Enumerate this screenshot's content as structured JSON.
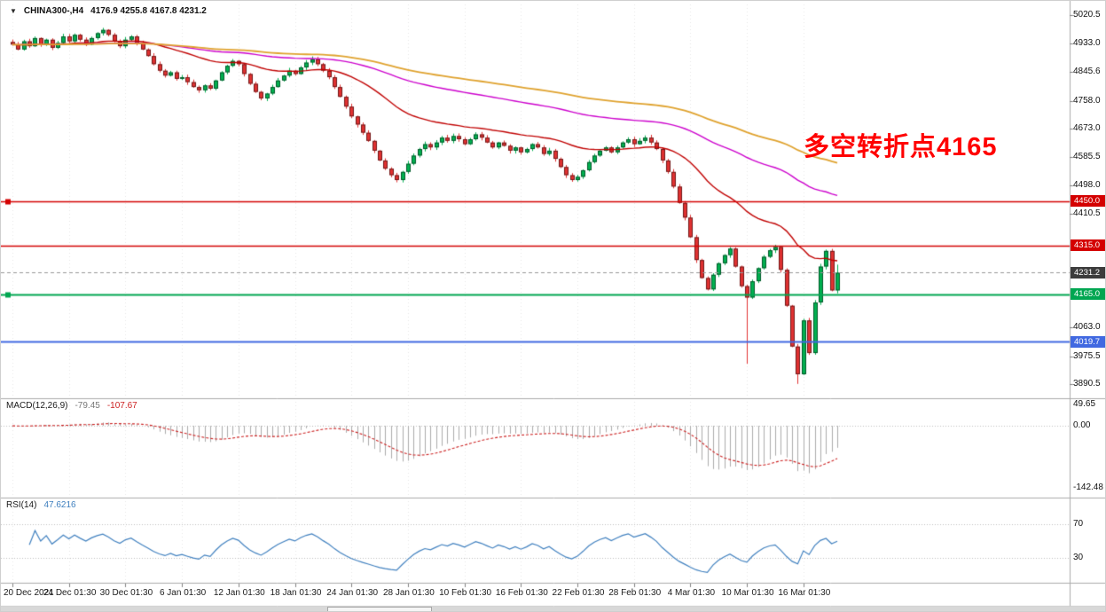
{
  "chart": {
    "dropdown_icon": "▼",
    "symbol": "CHINA300-,H4",
    "ohlc": "4176.9 4255.8 4167.8 4231.2",
    "annotation": "多空转折点4165"
  },
  "colors": {
    "up": "#00B050",
    "down": "#E03131",
    "candle_border": "rgba(0,0,0,0.5)",
    "ma_fast": "#C00000",
    "ma_mid": "#CC00CC",
    "ma_slow": "#DFA22E",
    "line_red": "#D40000",
    "line_green": "#00A651",
    "line_blue": "#4169E1",
    "bid_line": "#999999",
    "bid_badge": "#3C3C3C",
    "macd_hist": "#ABABAB",
    "macd_signal": "#CC2222",
    "rsi_line": "#4080BF",
    "annotation": "#FF0000",
    "grid": "#E6E6E6",
    "separator": "#ABABAB",
    "axis_tick": "#808080"
  },
  "chart_data": {
    "type": "candlestick",
    "title": "CHINA300-,H4",
    "symbol": "CHINA300-",
    "timeframe": "H4",
    "x_labels": [
      "20 Dec 2021",
      "24 Dec 01:30",
      "30 Dec 01:30",
      "6 Jan 01:30",
      "12 Jan 01:30",
      "18 Jan 01:30",
      "24 Jan 01:30",
      "28 Jan 01:30",
      "10 Feb 01:30",
      "16 Feb 01:30",
      "22 Feb 01:30",
      "28 Feb 01:30",
      "4 Mar 01:30",
      "10 Mar 01:30",
      "16 Mar 01:30"
    ],
    "bars_per_label": 10,
    "price_range": [
      3852,
      5053
    ],
    "price_axis_ticks": [
      "5020.5",
      "4933.0",
      "4845.6",
      "4758.0",
      "4673.0",
      "4585.5",
      "4498.0",
      "4410.5",
      "4063.0",
      "3975.5",
      "3890.5"
    ],
    "closes": [
      4930,
      4915,
      4940,
      4925,
      4950,
      4930,
      4945,
      4920,
      4935,
      4955,
      4940,
      4960,
      4945,
      4930,
      4950,
      4965,
      4975,
      4960,
      4940,
      4925,
      4945,
      4955,
      4935,
      4915,
      4895,
      4870,
      4850,
      4835,
      4845,
      4825,
      4830,
      4815,
      4800,
      4790,
      4805,
      4795,
      4820,
      4845,
      4865,
      4880,
      4870,
      4840,
      4810,
      4785,
      4765,
      4780,
      4800,
      4820,
      4835,
      4850,
      4840,
      4860,
      4875,
      4885,
      4870,
      4850,
      4830,
      4800,
      4770,
      4740,
      4710,
      4685,
      4660,
      4635,
      4605,
      4575,
      4550,
      4530,
      4515,
      4540,
      4565,
      4590,
      4610,
      4625,
      4615,
      4630,
      4645,
      4635,
      4650,
      4640,
      4625,
      4640,
      4655,
      4645,
      4630,
      4615,
      4630,
      4620,
      4605,
      4615,
      4600,
      4610,
      4625,
      4615,
      4595,
      4605,
      4580,
      4555,
      4530,
      4515,
      4525,
      4545,
      4570,
      4590,
      4605,
      4615,
      4600,
      4615,
      4630,
      4640,
      4625,
      4635,
      4645,
      4630,
      4610,
      4575,
      4540,
      4495,
      4445,
      4400,
      4340,
      4270,
      4215,
      4180,
      4225,
      4260,
      4285,
      4305,
      4250,
      4190,
      4155,
      4205,
      4245,
      4280,
      4300,
      4310,
      4240,
      4130,
      4005,
      3920,
      4085,
      3985,
      4140,
      4250,
      4298,
      4176.9,
      4231.2
    ],
    "candle_overrides": {
      "spike_lows": {
        "130": 3952.0,
        "139": 3890.5
      },
      "last": {
        "open": 4176.9,
        "high": 4255.8,
        "low": 4167.8,
        "close": 4231.2
      }
    },
    "moving_averages": [
      {
        "name": "ma-fast",
        "period": 34,
        "color_key": "ma_fast",
        "width": 1.4
      },
      {
        "name": "ma-mid",
        "period": 96,
        "color_key": "ma_mid",
        "width": 1.4
      },
      {
        "name": "ma-slow",
        "period": 150,
        "color_key": "ma_slow",
        "width": 1.8
      }
    ],
    "hlines": [
      {
        "price": 4450.0,
        "label": "4450.0",
        "color_key": "line_red",
        "width": 1.6,
        "handle": true
      },
      {
        "price": 4315.0,
        "label": "4315.0",
        "color_key": "line_red",
        "width": 1.6,
        "handle": false
      },
      {
        "price": 4165.0,
        "label": "4165.0",
        "color_key": "line_green",
        "width": 1.8,
        "handle": true
      },
      {
        "price": 4019.7,
        "label": "4019.7",
        "color_key": "line_blue",
        "width": 1.8,
        "handle": false
      }
    ],
    "current_price": {
      "value": 4231.2,
      "label": "4231.2"
    },
    "indicators": {
      "macd": {
        "label": "MACD(12,26,9)",
        "value_main": "-79.45",
        "value_signal": "-107.67",
        "fast": 12,
        "slow": 26,
        "signal": 9,
        "axis_ticks": [
          "49.65",
          "0.00",
          "-142.48"
        ],
        "range": [
          -160,
          55
        ]
      },
      "rsi": {
        "label": "RSI(14)",
        "value_text": "47.6216",
        "period": 14,
        "levels": [
          "70",
          "30"
        ],
        "range": [
          2,
          98
        ]
      }
    }
  }
}
